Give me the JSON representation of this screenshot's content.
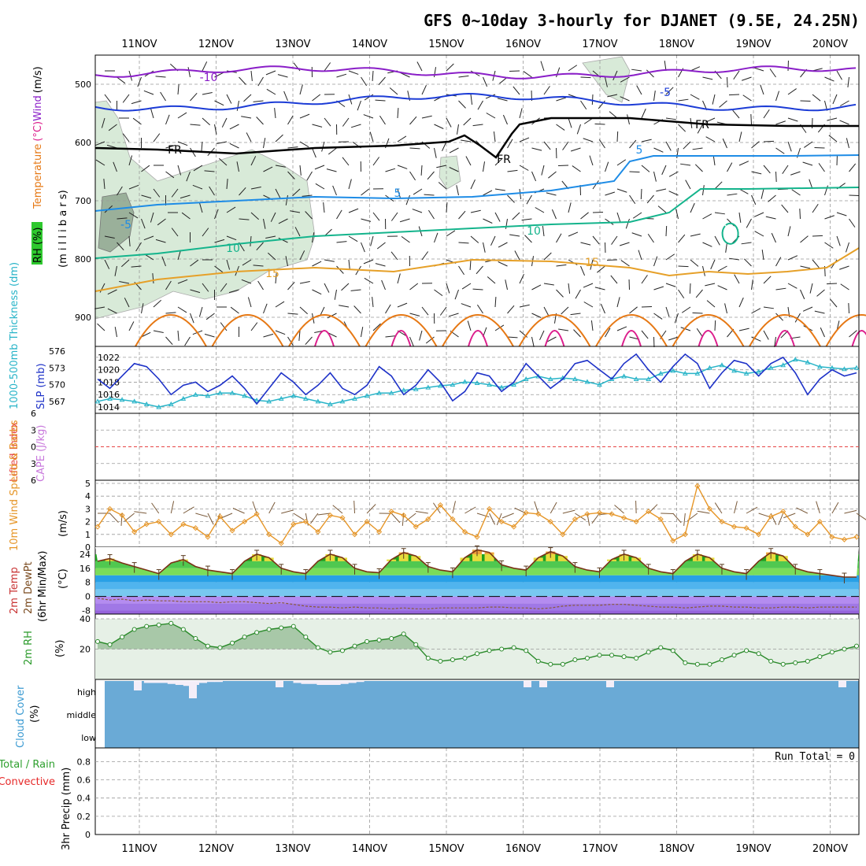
{
  "title": "GFS 0~10day 3-hourly for DJANET (9.5E, 24.25N)",
  "days": [
    "11NOV",
    "12NOV",
    "13NOV",
    "14NOV",
    "15NOV",
    "16NOV",
    "17NOV",
    "18NOV",
    "19NOV",
    "20NOV"
  ],
  "colors": {
    "grid": "#999999",
    "purple": "#8a1ec8",
    "blue": "#1c3cd6",
    "lightblue": "#1e8ce6",
    "green": "#14b48c",
    "gold": "#e6a028",
    "orange": "#e67814",
    "magenta": "#dc1e8c",
    "cyan": "#28b4c8",
    "slp": "#1e32c8",
    "cloud": "#6aaad6"
  },
  "chart_data": [
    {
      "type": "line",
      "panel": "upper-air",
      "ylabel_parts": [
        "Temperature",
        "(°C)",
        "Wind",
        "(m/s)"
      ],
      "ylabel2": "(m i l l i b a r s)",
      "rh_label": "RH (%)",
      "yticks": [
        500,
        600,
        700,
        800,
        900
      ],
      "ylim": [
        450,
        950
      ],
      "contour_labels": [
        {
          "text": "-10",
          "color": "purple"
        },
        {
          "text": "-5",
          "color": "blue"
        },
        {
          "text": "FR",
          "color": "black"
        },
        {
          "text": "FR",
          "color": "black"
        },
        {
          "text": "FR",
          "color": "black"
        },
        {
          "text": "5",
          "color": "lightblue"
        },
        {
          "text": "5",
          "color": "lightblue"
        },
        {
          "text": "-5",
          "color": "lightblue"
        },
        {
          "text": "10",
          "color": "green"
        },
        {
          "text": "10",
          "color": "green"
        },
        {
          "text": "15",
          "color": "gold"
        },
        {
          "text": "15",
          "color": "gold"
        }
      ]
    },
    {
      "type": "line",
      "panel": "thickness-slp",
      "ylabel_left": "1000-500mb Thickness (dm)",
      "ylabel_right": "SLP (mb)",
      "left_ticks": [
        567,
        570,
        573,
        576
      ],
      "right_ticks": [
        1014,
        1016,
        1018,
        1020,
        1022
      ],
      "series": [
        {
          "name": "SLP",
          "values": [
            1018.5,
            1017.0,
            1019.0,
            1021.0,
            1020.5,
            1018.5,
            1016.0,
            1017.5,
            1018.0,
            1016.5,
            1017.5,
            1019.0,
            1017.0,
            1014.5,
            1017.0,
            1019.5,
            1018.0,
            1016.0,
            1017.5,
            1019.5,
            1017.0,
            1016.0,
            1017.5,
            1020.5,
            1019.0,
            1016.0,
            1017.5,
            1020.0,
            1018.0,
            1015.0,
            1016.5,
            1019.5,
            1019.0,
            1016.5,
            1018.0,
            1021.0,
            1019.0,
            1017.0,
            1018.5,
            1021.0,
            1021.5,
            1020.0,
            1018.5,
            1021.0,
            1022.5,
            1020.0,
            1018.0,
            1020.5,
            1022.5,
            1021.0,
            1017.0,
            1019.5,
            1021.5,
            1021.0,
            1019.0,
            1021.0,
            1022.0,
            1019.5,
            1016.0,
            1018.5,
            1020.0,
            1019.0,
            1019.5
          ]
        },
        {
          "name": "Thickness",
          "values": [
            567.0,
            567.5,
            567.3,
            567.0,
            566.5,
            566.0,
            566.5,
            567.5,
            568.2,
            568.0,
            568.5,
            568.5,
            568.0,
            567.2,
            567.0,
            567.5,
            568.0,
            567.5,
            567.0,
            566.5,
            567.0,
            567.5,
            568.0,
            568.5,
            568.5,
            569.0,
            569.2,
            569.5,
            569.8,
            570.0,
            570.5,
            570.3,
            570.0,
            569.5,
            570.0,
            571.0,
            571.5,
            571.0,
            571.2,
            571.0,
            570.5,
            570.0,
            571.0,
            571.5,
            571.0,
            571.0,
            572.0,
            572.5,
            572.0,
            572.0,
            573.0,
            573.5,
            572.5,
            572.0,
            572.3,
            573.0,
            573.5,
            574.5,
            574.0,
            573.2,
            573.0,
            572.8,
            573.0
          ]
        }
      ]
    },
    {
      "type": "line",
      "panel": "stability",
      "ylabel_left": "Lifted Index",
      "ylabel_right": "CAPE (J/kg)",
      "yticks": [
        6,
        3,
        0,
        -3,
        -6
      ],
      "ylim": [
        -6,
        6
      ],
      "series": [
        {
          "name": "Lifted Index",
          "values": [
            0
          ]
        }
      ]
    },
    {
      "type": "line",
      "panel": "surface-wind",
      "ylabel_left": "10m Wind Speed & Barbs",
      "ylabel_right": "(m/s)",
      "yticks": [
        0,
        1,
        2,
        3,
        4,
        5
      ],
      "ylim": [
        0,
        5
      ],
      "series": [
        {
          "name": "Wind speed",
          "values": [
            1.6,
            3.0,
            2.5,
            1.2,
            1.8,
            2.0,
            1.0,
            1.8,
            1.5,
            0.8,
            2.4,
            1.3,
            2.0,
            2.6,
            1.0,
            0.3,
            1.8,
            2.0,
            1.2,
            2.5,
            2.3,
            1.0,
            2.0,
            1.2,
            2.8,
            2.5,
            1.6,
            2.2,
            3.3,
            2.2,
            1.2,
            0.8,
            3.0,
            2.0,
            1.6,
            2.7,
            2.6,
            2.0,
            1.0,
            2.2,
            2.6,
            2.7,
            2.6,
            2.3,
            2.0,
            2.8,
            2.2,
            0.5,
            1.0,
            4.8,
            3.0,
            2.0,
            1.6,
            1.5,
            1.0,
            2.4,
            2.8,
            1.6,
            1.0,
            2.0,
            0.8,
            0.6,
            0.8
          ]
        }
      ]
    },
    {
      "type": "area",
      "panel": "temperature",
      "ylabel_parts": [
        "2m Temp",
        "2m DewPt",
        "(6hr Min/Max)"
      ],
      "ylabel_right": "(°C)",
      "yticks": [
        -8,
        0,
        8,
        16,
        24
      ],
      "ylim": [
        -10,
        28
      ],
      "series": [
        {
          "name": "2m Temp",
          "values": [
            20.0,
            21.5,
            19.0,
            17.0,
            15.0,
            13.0,
            19.0,
            21.0,
            17.0,
            15.0,
            14.0,
            13.0,
            20.0,
            24.0,
            22.0,
            16.0,
            14.0,
            13.0,
            20.0,
            24.0,
            22.0,
            16.0,
            14.0,
            13.5,
            21.0,
            25.0,
            23.0,
            17.0,
            15.0,
            14.0,
            22.0,
            26.5,
            25.0,
            18.0,
            16.0,
            15.0,
            22.0,
            25.5,
            23.0,
            17.0,
            15.0,
            14.0,
            21.0,
            24.0,
            22.0,
            16.0,
            14.0,
            13.0,
            20.0,
            24.0,
            22.0,
            16.0,
            14.0,
            13.0,
            20.0,
            25.0,
            23.0,
            16.0,
            14.0,
            13.0,
            12.0,
            11.0,
            11.0
          ]
        },
        {
          "name": "2m DewPt",
          "values": [
            -1.0,
            -2.0,
            -1.5,
            -2.5,
            -2.0,
            -2.5,
            -2.5,
            -3.0,
            -3.0,
            -3.0,
            -3.5,
            -3.0,
            -3.0,
            -3.5,
            -4.0,
            -3.5,
            -4.5,
            -5.5,
            -6.0,
            -6.0,
            -6.5,
            -6.0,
            -6.5,
            -6.5,
            -7.0,
            -6.5,
            -7.0,
            -7.0,
            -6.5,
            -6.5,
            -6.5,
            -6.5,
            -6.0,
            -6.0,
            -6.5,
            -6.5,
            -7.0,
            -6.5,
            -5.5,
            -5.0,
            -5.0,
            -5.0,
            -4.5,
            -4.5,
            -5.0,
            -5.5,
            -6.0,
            -6.0,
            -6.5,
            -6.0,
            -5.5,
            -5.5,
            -6.0,
            -6.0,
            -6.5,
            -6.5,
            -6.0,
            -6.0,
            -6.5,
            -6.0,
            -6.0,
            -6.0,
            -6.0
          ]
        }
      ]
    },
    {
      "type": "area",
      "panel": "humidity",
      "ylabel": "2m RH",
      "ylabel_right": "(%)",
      "yticks": [
        20,
        40
      ],
      "ylim": [
        0,
        40
      ],
      "series": [
        {
          "name": "2m RH",
          "values": [
            25,
            23,
            28,
            33,
            35,
            36,
            37,
            33,
            27,
            22,
            21,
            24,
            28,
            31,
            33,
            34,
            35,
            28,
            21,
            18,
            19,
            22,
            25,
            26,
            27,
            30,
            23,
            14,
            12,
            13,
            14,
            17,
            19,
            20,
            21,
            19,
            12,
            10,
            10,
            13,
            14,
            16,
            16,
            15,
            14,
            18,
            21,
            19,
            11,
            10,
            10,
            13,
            16,
            19,
            17,
            12,
            10,
            11,
            12,
            15,
            18,
            20,
            22
          ]
        }
      ]
    },
    {
      "type": "bar",
      "panel": "cloud-cover",
      "ylabel": "Cloud Cover",
      "ylabel_right": "(%)",
      "levels": [
        "high",
        "middle",
        "low"
      ],
      "series": [
        {
          "name": "high",
          "values": [
            100,
            100,
            100,
            100,
            100,
            90,
            90,
            90,
            85,
            80,
            75,
            80,
            90,
            95,
            95,
            100,
            100,
            100,
            100,
            100,
            100,
            100,
            100,
            100,
            90,
            85,
            85,
            80,
            80,
            80,
            85,
            90,
            95,
            100,
            100,
            100,
            100,
            100,
            100,
            100,
            100,
            100,
            100,
            100,
            100,
            100,
            100,
            100,
            100,
            100,
            100,
            100,
            100,
            100,
            100,
            100,
            100,
            100,
            100,
            100,
            100,
            100,
            100,
            100,
            100,
            100,
            100,
            100,
            100,
            100,
            100,
            100,
            100,
            100,
            100,
            100,
            100,
            100,
            100,
            100,
            100,
            100,
            100,
            100,
            100,
            100,
            100,
            100,
            100,
            100,
            100,
            100,
            100,
            100,
            100,
            100
          ]
        }
      ]
    },
    {
      "type": "bar",
      "panel": "precip",
      "ylabel_left": "Total / Rain",
      "ylabel_left2": "Convective",
      "ylabel_right": "3hr Precip (mm)",
      "yticks": [
        0,
        0.2,
        0.4,
        0.6,
        0.8
      ],
      "ylim": [
        0,
        0.95
      ],
      "annotation": "Run Total = 0",
      "series": [
        {
          "name": "precip",
          "values": [
            0
          ]
        }
      ]
    }
  ]
}
